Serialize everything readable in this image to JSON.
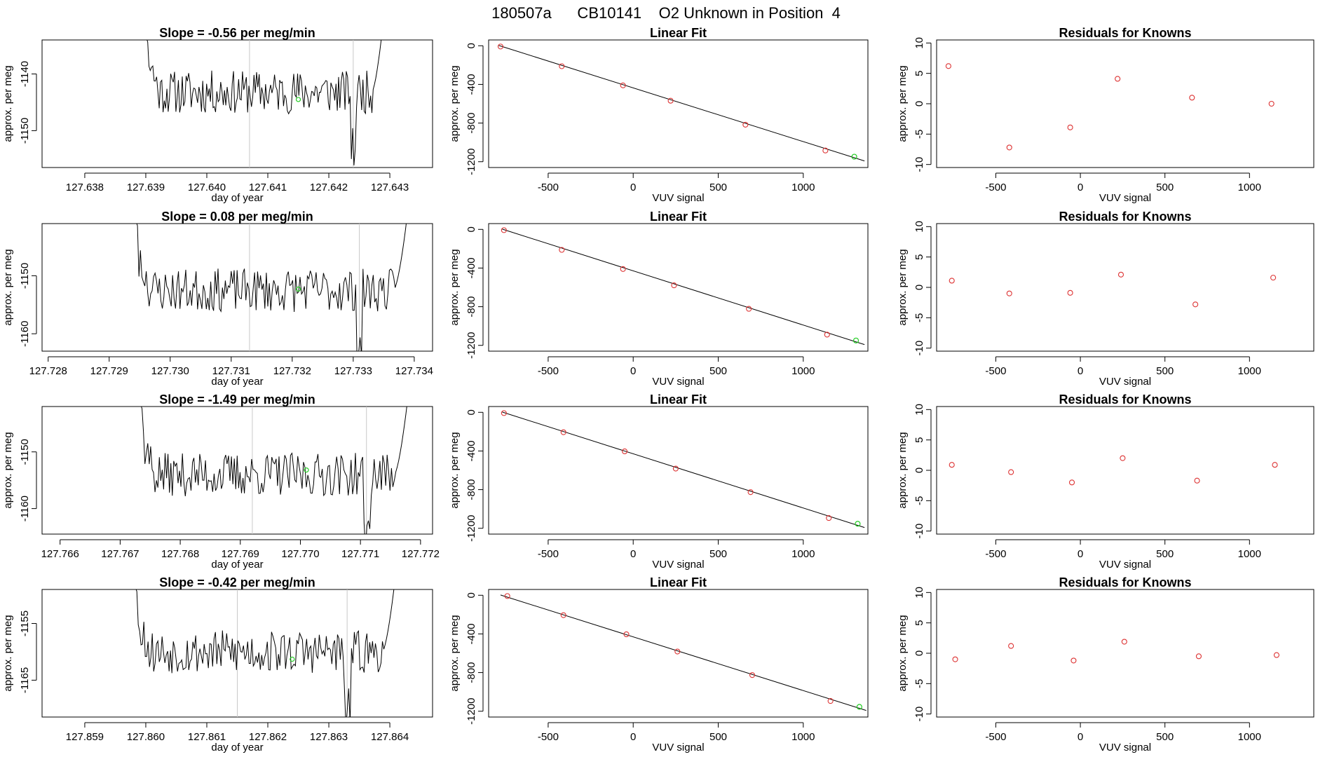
{
  "page_title": "180507a      CB10141    O2 Unknown in Position  4",
  "chart_data": [
    {
      "row": 1,
      "timeseries": {
        "type": "line",
        "title": "Slope =  -0.56  per meg/min",
        "xlabel": "day of year",
        "ylabel": "approx. per meg",
        "xlim": [
          127.6373,
          127.6437
        ],
        "ylim": [
          -1156.5,
          -1134
        ],
        "xticks": [
          127.638,
          127.639,
          127.64,
          127.641,
          127.642,
          127.643
        ],
        "xtick_labels": [
          "127.638",
          "127.639",
          "127.640",
          "127.641",
          "127.642",
          "127.643"
        ],
        "yticks": [
          -1140,
          -1150
        ],
        "ytick_labels": [
          "-1140",
          "-1150"
        ],
        "vlines": [
          127.6407,
          127.6424
        ],
        "start": 127.6388,
        "end": 127.643,
        "baseline": -1143.2,
        "marker_x": 127.6415,
        "marker_y": -1144.5,
        "seed": 11
      },
      "fit": {
        "type": "line",
        "title": "Linear Fit",
        "xlabel": "VUV signal",
        "ylabel": "approx. per meg",
        "xlim": [
          -850,
          1380
        ],
        "ylim": [
          -1260,
          60
        ],
        "xticks": [
          -500,
          0,
          500,
          1000
        ],
        "xtick_labels": [
          "-500",
          "0",
          "500",
          "1000"
        ],
        "yticks": [
          0,
          -400,
          -800,
          -1200
        ],
        "ytick_labels": [
          "0",
          "-400",
          "-800",
          "-1200"
        ],
        "line": [
          [
            -790,
            3
          ],
          [
            1360,
            -1192
          ]
        ],
        "knowns_x": [
          -780,
          -420,
          -60,
          220,
          660,
          1130
        ],
        "knowns_y": [
          -8,
          -212,
          -410,
          -569,
          -817,
          -1084
        ],
        "unknown": [
          1300,
          -1148
        ]
      },
      "residuals": {
        "type": "scatter",
        "title": "Residuals for Knowns",
        "xlabel": "VUV signal",
        "ylabel": "approx. per meg",
        "xlim": [
          -850,
          1380
        ],
        "ylim": [
          -10.5,
          10.5
        ],
        "xticks": [
          -500,
          0,
          500,
          1000
        ],
        "xtick_labels": [
          "-500",
          "0",
          "500",
          "1000"
        ],
        "yticks": [
          10,
          5,
          0,
          -5,
          -10
        ],
        "ytick_labels": [
          "10",
          "5",
          "0",
          "-5",
          "-10"
        ],
        "x": [
          -780,
          -420,
          -60,
          220,
          660,
          1130
        ],
        "y": [
          6.2,
          -7.2,
          -3.9,
          4.1,
          1.0,
          0.0
        ]
      }
    },
    {
      "row": 2,
      "timeseries": {
        "type": "line",
        "title": "Slope =  0.08  per meg/min",
        "xlabel": "day of year",
        "ylabel": "approx. per meg",
        "xlim": [
          127.7279,
          127.7343
        ],
        "ylim": [
          -1163,
          -1141
        ],
        "xticks": [
          127.728,
          127.729,
          127.73,
          127.731,
          127.732,
          127.733,
          127.734
        ],
        "xtick_labels": [
          "127.728",
          "127.729",
          "127.730",
          "127.731",
          "127.732",
          "127.733",
          "127.734"
        ],
        "yticks": [
          -1150,
          -1160
        ],
        "ytick_labels": [
          "-1150",
          "-1160"
        ],
        "vlines": [
          127.7313,
          127.7331
        ],
        "start": 127.7292,
        "end": 127.734,
        "baseline": -1152.5,
        "marker_x": 127.7321,
        "marker_y": -1152.3,
        "seed": 23
      },
      "fit": {
        "type": "line",
        "title": "Linear Fit",
        "xlabel": "VUV signal",
        "ylabel": "approx. per meg",
        "xlim": [
          -850,
          1380
        ],
        "ylim": [
          -1260,
          60
        ],
        "xticks": [
          -500,
          0,
          500,
          1000
        ],
        "xtick_labels": [
          "-500",
          "0",
          "500",
          "1000"
        ],
        "yticks": [
          0,
          -400,
          -800,
          -1200
        ],
        "ytick_labels": [
          "0",
          "-400",
          "-800",
          "-1200"
        ],
        "line": [
          [
            -770,
            3
          ],
          [
            1360,
            -1192
          ]
        ],
        "knowns_x": [
          -760,
          -420,
          -60,
          240,
          680,
          1140
        ],
        "knowns_y": [
          -8,
          -212,
          -410,
          -579,
          -822,
          -1089
        ],
        "unknown": [
          1310,
          -1150
        ]
      },
      "residuals": {
        "type": "scatter",
        "title": "Residuals for Knowns",
        "xlabel": "VUV signal",
        "ylabel": "approx. per meg",
        "xlim": [
          -850,
          1380
        ],
        "ylim": [
          -10.5,
          10.5
        ],
        "xticks": [
          -500,
          0,
          500,
          1000
        ],
        "xtick_labels": [
          "-500",
          "0",
          "500",
          "1000"
        ],
        "yticks": [
          10,
          5,
          0,
          -5,
          -10
        ],
        "ytick_labels": [
          "10",
          "5",
          "0",
          "-5",
          "-10"
        ],
        "x": [
          -760,
          -420,
          -60,
          240,
          680,
          1140
        ],
        "y": [
          1.1,
          -1.0,
          -0.9,
          2.1,
          -2.8,
          1.6
        ]
      }
    },
    {
      "row": 3,
      "timeseries": {
        "type": "line",
        "title": "Slope =  -1.49  per meg/min",
        "xlabel": "day of year",
        "ylabel": "approx. per meg",
        "xlim": [
          127.7657,
          127.7722
        ],
        "ylim": [
          -1164.5,
          -1142
        ],
        "xticks": [
          127.766,
          127.767,
          127.768,
          127.769,
          127.77,
          127.771,
          127.772
        ],
        "xtick_labels": [
          "127.766",
          "127.767",
          "127.768",
          "127.769",
          "127.770",
          "127.771",
          "127.772"
        ],
        "yticks": [
          -1150,
          -1160
        ],
        "ytick_labels": [
          "-1150",
          "-1160"
        ],
        "vlines": [
          127.7692,
          127.7711
        ],
        "start": 127.7671,
        "end": 127.7719,
        "baseline": -1154.0,
        "marker_x": 127.7701,
        "marker_y": -1153.2,
        "seed": 37
      },
      "fit": {
        "type": "line",
        "title": "Linear Fit",
        "xlabel": "VUV signal",
        "ylabel": "approx. per meg",
        "xlim": [
          -850,
          1380
        ],
        "ylim": [
          -1260,
          60
        ],
        "xticks": [
          -500,
          0,
          500,
          1000
        ],
        "xtick_labels": [
          "-500",
          "0",
          "500",
          "1000"
        ],
        "yticks": [
          0,
          -400,
          -800,
          -1200
        ],
        "ytick_labels": [
          "0",
          "-400",
          "-800",
          "-1200"
        ],
        "line": [
          [
            -770,
            3
          ],
          [
            1360,
            -1192
          ]
        ],
        "knowns_x": [
          -760,
          -410,
          -50,
          250,
          690,
          1150
        ],
        "knowns_y": [
          -8,
          -206,
          -404,
          -582,
          -826,
          -1094
        ],
        "unknown": [
          1320,
          -1153
        ]
      },
      "residuals": {
        "type": "scatter",
        "title": "Residuals for Knowns",
        "xlabel": "VUV signal",
        "ylabel": "approx. per meg",
        "xlim": [
          -850,
          1380
        ],
        "ylim": [
          -10.5,
          10.5
        ],
        "xticks": [
          -500,
          0,
          500,
          1000
        ],
        "xtick_labels": [
          "-500",
          "0",
          "500",
          "1000"
        ],
        "yticks": [
          10,
          5,
          0,
          -5,
          -10
        ],
        "ytick_labels": [
          "10",
          "5",
          "0",
          "-5",
          "-10"
        ],
        "x": [
          -760,
          -410,
          -50,
          250,
          690,
          1150
        ],
        "y": [
          0.9,
          -0.3,
          -2.0,
          2.0,
          -1.7,
          0.9
        ]
      }
    },
    {
      "row": 4,
      "timeseries": {
        "type": "line",
        "title": "Slope =  -0.42  per meg/min",
        "xlabel": "day of year",
        "ylabel": "approx. per meg",
        "xlim": [
          127.8583,
          127.8647
        ],
        "ylim": [
          -1171.5,
          -1149
        ],
        "xticks": [
          127.859,
          127.86,
          127.861,
          127.862,
          127.863,
          127.864
        ],
        "xtick_labels": [
          "127.859",
          "127.860",
          "127.861",
          "127.862",
          "127.863",
          "127.864"
        ],
        "yticks": [
          -1155,
          -1165
        ],
        "ytick_labels": [
          "-1155",
          "-1165"
        ],
        "vlines": [
          127.8615,
          127.8633
        ],
        "start": 127.8596,
        "end": 127.8642,
        "baseline": -1160.0,
        "marker_x": 127.8624,
        "marker_y": -1161.3,
        "seed": 53
      },
      "fit": {
        "type": "line",
        "title": "Linear Fit",
        "xlabel": "VUV signal",
        "ylabel": "approx. per meg",
        "xlim": [
          -850,
          1380
        ],
        "ylim": [
          -1260,
          60
        ],
        "xticks": [
          -500,
          0,
          500,
          1000
        ],
        "xtick_labels": [
          "-500",
          "0",
          "500",
          "1000"
        ],
        "yticks": [
          0,
          -400,
          -800,
          -1200
        ],
        "ytick_labels": [
          "0",
          "-400",
          "-800",
          "-1200"
        ],
        "line": [
          [
            -780,
            3
          ],
          [
            1370,
            -1192
          ]
        ],
        "knowns_x": [
          -740,
          -410,
          -40,
          260,
          700,
          1160
        ],
        "knowns_y": [
          -8,
          -206,
          -404,
          -582,
          -826,
          -1094
        ],
        "unknown": [
          1330,
          -1155
        ]
      },
      "residuals": {
        "type": "scatter",
        "title": "Residuals for Knowns",
        "xlabel": "VUV signal",
        "ylabel": "approx. per meg",
        "xlim": [
          -850,
          1380
        ],
        "ylim": [
          -10.5,
          10.5
        ],
        "xticks": [
          -500,
          0,
          500,
          1000
        ],
        "xtick_labels": [
          "-500",
          "0",
          "500",
          "1000"
        ],
        "yticks": [
          10,
          5,
          0,
          -5,
          -10
        ],
        "ytick_labels": [
          "10",
          "5",
          "0",
          "-5",
          "-10"
        ],
        "x": [
          -740,
          -410,
          -40,
          260,
          700,
          1160
        ],
        "y": [
          -1.0,
          1.2,
          -1.2,
          1.9,
          -0.5,
          -0.3
        ]
      }
    }
  ]
}
